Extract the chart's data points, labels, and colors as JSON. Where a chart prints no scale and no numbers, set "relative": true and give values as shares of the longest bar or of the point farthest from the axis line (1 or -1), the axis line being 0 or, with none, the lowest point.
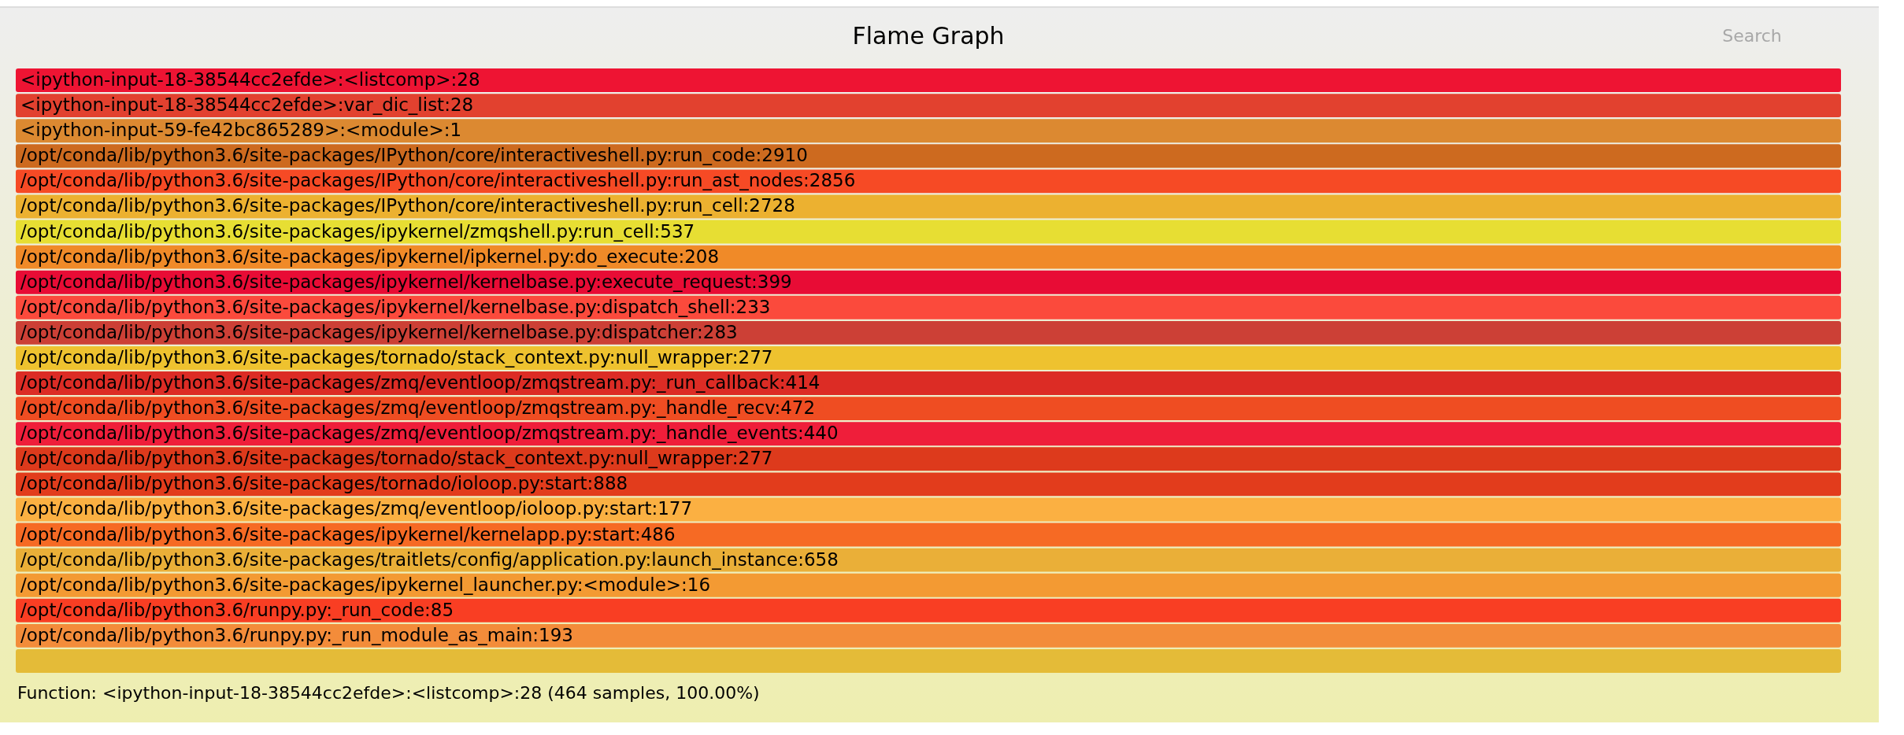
{
  "chart_data": {
    "type": "bar",
    "orientation": "horizontal",
    "relative": true,
    "title": "Flame Graph",
    "categories": [
      "<ipython-input-18-38544cc2efde>:<listcomp>:28",
      "<ipython-input-18-38544cc2efde>:var_dic_list:28",
      "<ipython-input-59-fe42bc865289>:<module>:1",
      "/opt/conda/lib/python3.6/site-packages/IPython/core/interactiveshell.py:run_code:2910",
      "/opt/conda/lib/python3.6/site-packages/IPython/core/interactiveshell.py:run_ast_nodes:2856",
      "/opt/conda/lib/python3.6/site-packages/IPython/core/interactiveshell.py:run_cell:2728",
      "/opt/conda/lib/python3.6/site-packages/ipykernel/zmqshell.py:run_cell:537",
      "/opt/conda/lib/python3.6/site-packages/ipykernel/ipkernel.py:do_execute:208",
      "/opt/conda/lib/python3.6/site-packages/ipykernel/kernelbase.py:execute_request:399",
      "/opt/conda/lib/python3.6/site-packages/ipykernel/kernelbase.py:dispatch_shell:233",
      "/opt/conda/lib/python3.6/site-packages/ipykernel/kernelbase.py:dispatcher:283",
      "/opt/conda/lib/python3.6/site-packages/tornado/stack_context.py:null_wrapper:277",
      "/opt/conda/lib/python3.6/site-packages/zmq/eventloop/zmqstream.py:_run_callback:414",
      "/opt/conda/lib/python3.6/site-packages/zmq/eventloop/zmqstream.py:_handle_recv:472",
      "/opt/conda/lib/python3.6/site-packages/zmq/eventloop/zmqstream.py:_handle_events:440",
      "/opt/conda/lib/python3.6/site-packages/tornado/stack_context.py:null_wrapper:277",
      "/opt/conda/lib/python3.6/site-packages/tornado/ioloop.py:start:888",
      "/opt/conda/lib/python3.6/site-packages/zmq/eventloop/ioloop.py:start:177",
      "/opt/conda/lib/python3.6/site-packages/ipykernel/kernelapp.py:start:486",
      "/opt/conda/lib/python3.6/site-packages/traitlets/config/application.py:launch_instance:658",
      "/opt/conda/lib/python3.6/site-packages/ipykernel_launcher.py:<module>:16",
      "/opt/conda/lib/python3.6/runpy.py:_run_code:85",
      "/opt/conda/lib/python3.6/runpy.py:_run_module_as_main:193",
      null
    ],
    "values": [
      1,
      1,
      1,
      1,
      1,
      1,
      1,
      1,
      1,
      1,
      1,
      1,
      1,
      1,
      1,
      1,
      1,
      1,
      1,
      1,
      1,
      1,
      1,
      1
    ],
    "colors": [
      "#ee1433",
      "#e2412f",
      "#dc8931",
      "#cd6a1f",
      "#f64a25",
      "#ecb130",
      "#e7de33",
      "#f08a28",
      "#e80c35",
      "#fb4a3c",
      "#cc4036",
      "#eec22f",
      "#dc2c25",
      "#ef4d22",
      "#ef1e3a",
      "#dd3a1c",
      "#e23c1c",
      "#fbb042",
      "#f66a24",
      "#eaaf38",
      "#f39a33",
      "#f93e23",
      "#f38c3a",
      "#e4bb38"
    ],
    "annotations": [
      "Search",
      "Function: <ipython-input-18-38544cc2efde>:<listcomp>:28 (464 samples, 100.00%)"
    ],
    "legend": false
  }
}
